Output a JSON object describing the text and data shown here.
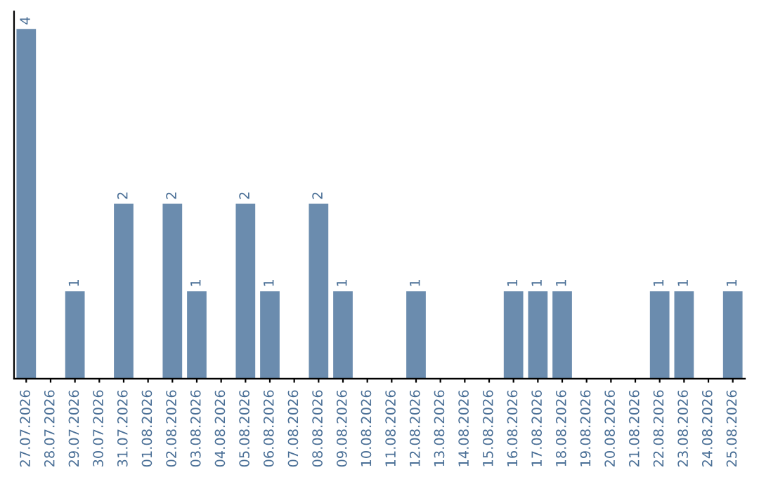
{
  "chart_data": {
    "type": "bar",
    "categories": [
      "27.07.2026",
      "28.07.2026",
      "29.07.2026",
      "30.07.2026",
      "31.07.2026",
      "01.08.2026",
      "02.08.2026",
      "03.08.2026",
      "04.08.2026",
      "05.08.2026",
      "06.08.2026",
      "07.08.2026",
      "08.08.2026",
      "09.08.2026",
      "10.08.2026",
      "11.08.2026",
      "12.08.2026",
      "13.08.2026",
      "14.08.2026",
      "15.08.2026",
      "16.08.2026",
      "17.08.2026",
      "18.08.2026",
      "19.08.2026",
      "20.08.2026",
      "21.08.2026",
      "22.08.2026",
      "23.08.2026",
      "24.08.2026",
      "25.08.2026"
    ],
    "values": [
      4,
      0,
      1,
      0,
      2,
      0,
      2,
      1,
      0,
      2,
      1,
      0,
      2,
      1,
      0,
      0,
      1,
      0,
      0,
      0,
      1,
      1,
      1,
      0,
      0,
      0,
      1,
      1,
      0,
      1
    ],
    "value_labels": [
      "4",
      null,
      "1",
      null,
      "2",
      null,
      "2",
      "1",
      null,
      "2",
      "1",
      null,
      "2",
      "1",
      null,
      null,
      "1",
      null,
      null,
      null,
      "1",
      "1",
      "1",
      null,
      null,
      null,
      "1",
      "1",
      null,
      "1"
    ],
    "color": "#6b8cae",
    "grid": false,
    "legend": false
  }
}
